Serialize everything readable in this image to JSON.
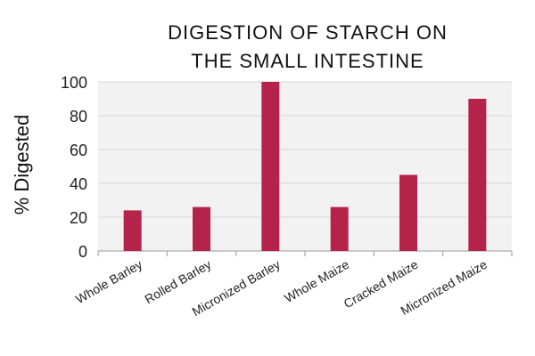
{
  "chart_data": {
    "type": "bar",
    "title_lines": [
      "DIGESTION OF STARCH ON",
      "THE SMALL INTESTINE"
    ],
    "xlabel": "",
    "ylabel": "% Digested",
    "ylim": [
      0,
      100
    ],
    "yticks": [
      0,
      20,
      40,
      60,
      80,
      100
    ],
    "categories": [
      "Whole Barley",
      "Rolled Barley",
      "Micronized Barley",
      "Whole Maize",
      "Cracked Maize",
      "Micronized Maize"
    ],
    "values": [
      24,
      26,
      100,
      26,
      45,
      90
    ],
    "bar_color": "#b5234a",
    "plot_background": "#f2f2f2",
    "grid": true,
    "grid_color": "#d6d6d6"
  }
}
